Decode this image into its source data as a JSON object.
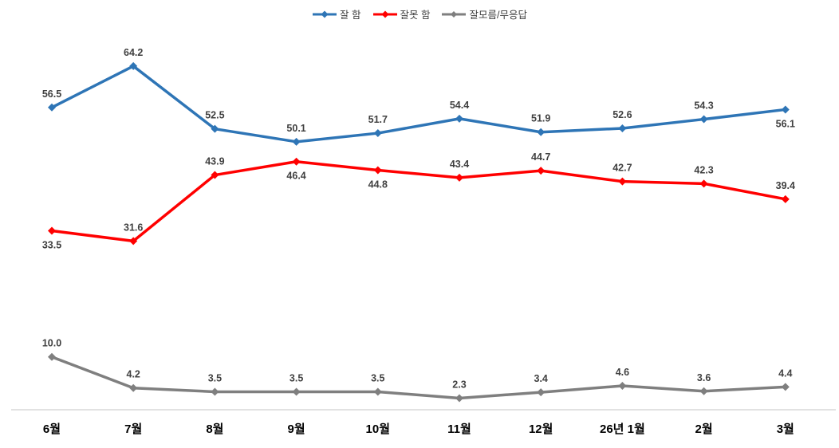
{
  "chart_data": {
    "type": "line",
    "title": "",
    "xlabel": "",
    "ylabel": "",
    "categories": [
      "6월",
      "7월",
      "8월",
      "9월",
      "10월",
      "11월",
      "12월",
      "26년 1월",
      "2월",
      "3월"
    ],
    "series": [
      {
        "name": "잘 함",
        "color": "#2E75B6",
        "values": [
          56.5,
          64.2,
          52.5,
          50.1,
          51.7,
          54.4,
          51.9,
          52.6,
          54.3,
          56.1
        ],
        "label_side": [
          "above",
          "above",
          "above",
          "above",
          "above",
          "above",
          "above",
          "above",
          "above",
          "below"
        ]
      },
      {
        "name": "잘못 함",
        "color": "#FF0000",
        "values": [
          33.5,
          31.6,
          43.9,
          46.4,
          44.8,
          43.4,
          44.7,
          42.7,
          42.3,
          39.4
        ],
        "label_side": [
          "below",
          "above",
          "above",
          "below",
          "below",
          "above",
          "above",
          "above",
          "above",
          "above"
        ]
      },
      {
        "name": "잘모름/무응답",
        "color": "#7F7F7F",
        "values": [
          10.0,
          4.2,
          3.5,
          3.5,
          3.5,
          2.3,
          3.4,
          4.6,
          3.6,
          4.4
        ],
        "label_side": [
          "above",
          "above",
          "above",
          "above",
          "above",
          "above",
          "above",
          "above",
          "above",
          "above"
        ]
      }
    ],
    "ylim": [
      0,
      70
    ],
    "grid": false,
    "legend_position": "top-center",
    "marker": "diamond",
    "data_labels": true,
    "data_label_decimals": 1
  },
  "colors": {
    "data_label": "#404040",
    "axis_line": "#D9D9D9",
    "x_tick_label": "#000000",
    "background": "#FFFFFF"
  }
}
